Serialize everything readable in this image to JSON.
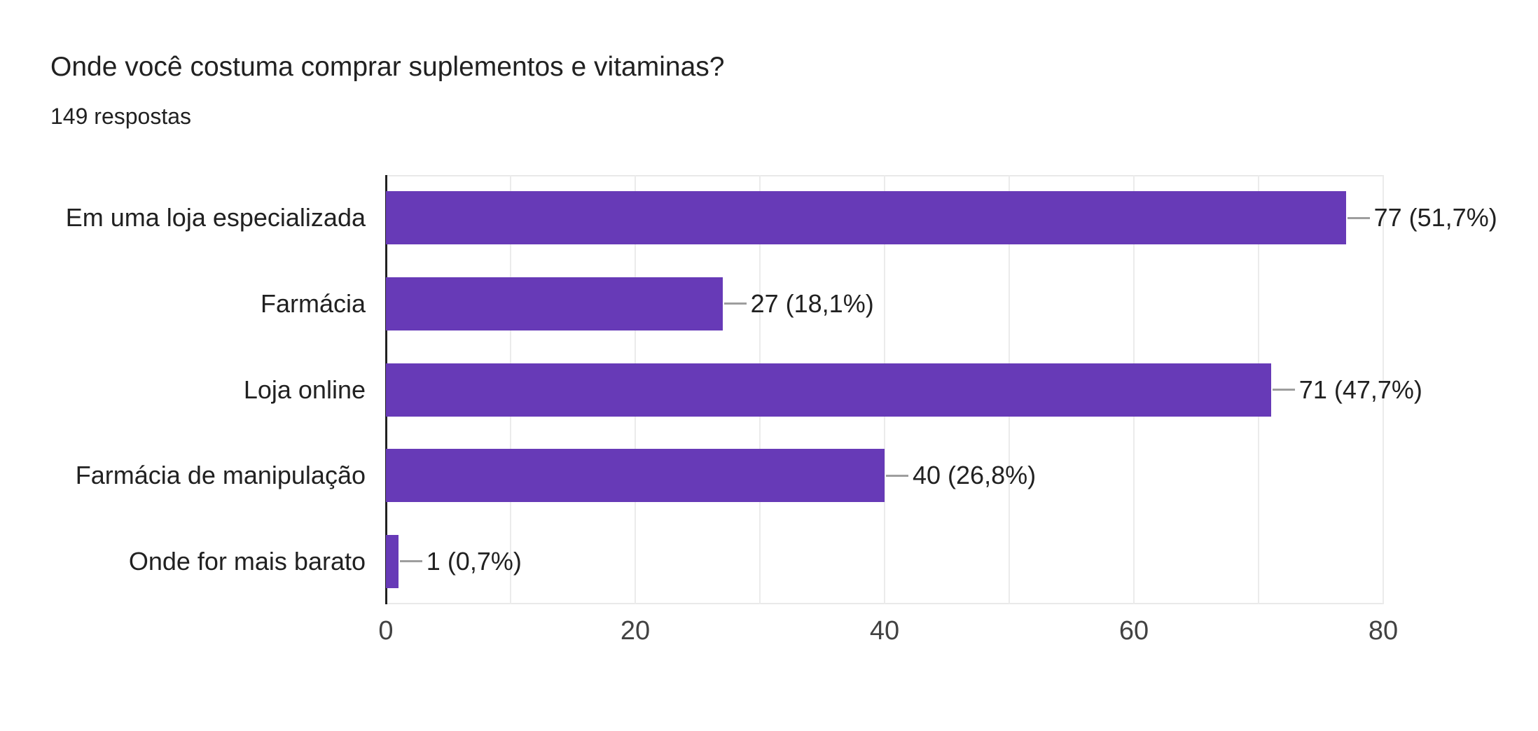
{
  "chart": {
    "title": "Onde você costuma comprar suplementos e vitaminas?",
    "subtitle": "149 respostas"
  },
  "chart_data": {
    "type": "bar",
    "orientation": "horizontal",
    "title": "Onde você costuma comprar suplementos e vitaminas?",
    "subtitle": "149 respostas",
    "categories": [
      "Em uma loja especializada",
      "Farmácia",
      "Loja online",
      "Farmácia de manipulação",
      "Onde for mais barato"
    ],
    "values": [
      77,
      27,
      71,
      40,
      1
    ],
    "value_labels": [
      "77 (51,7%)",
      "27 (18,1%)",
      "71 (47,7%)",
      "40 (26,8%)",
      "1 (0,7%)"
    ],
    "xlabel": "",
    "ylabel": "",
    "xlim": [
      0,
      80
    ],
    "x_ticks": [
      0,
      20,
      40,
      60,
      80
    ],
    "gridline_interval": 10,
    "grid": "on",
    "legend": "none",
    "bar_color": "#673ab7",
    "gridline_color": "#ebebeb",
    "axis_line_color": "#212121",
    "connector_color": "#9e9e9e",
    "text_color": "#212121",
    "tick_color": "#424242"
  }
}
